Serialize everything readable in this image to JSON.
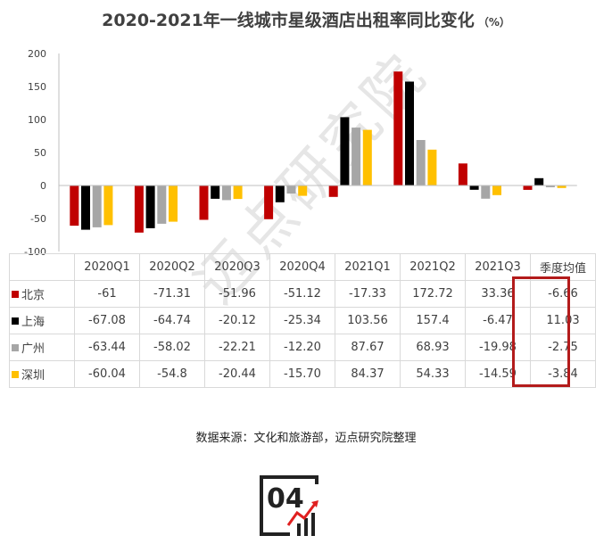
{
  "title": "2020-2021年一线城市星级酒店出租率同比变化",
  "title_unit": "（%）",
  "watermark": "迈点研究院",
  "source": "数据来源：文化和旅游部，迈点研究院整理",
  "logo_text": "04",
  "colors": {
    "北京": "#c00000",
    "上海": "#000000",
    "广州": "#a6a6a6",
    "深圳": "#ffc000",
    "highlight": "#b31b1b",
    "logo_arrow": "#e02020"
  },
  "chart_data": {
    "type": "bar",
    "categories": [
      "2020Q1",
      "2020Q2",
      "2020Q3",
      "2020Q4",
      "2021Q1",
      "2021Q2",
      "2021Q3",
      "季度均值"
    ],
    "series": [
      {
        "name": "北京",
        "values": [
          -61,
          -71.31,
          -51.96,
          -51.12,
          -17.33,
          172.72,
          33.36,
          -6.66
        ],
        "labels": [
          "-61",
          "-71.31",
          "-51.96",
          "-51.12",
          "-17.33",
          "172.72",
          "33.36",
          "-6.66"
        ]
      },
      {
        "name": "上海",
        "values": [
          -67.08,
          -64.74,
          -20.12,
          -25.34,
          103.56,
          157.4,
          -6.47,
          11.03
        ],
        "labels": [
          "-67.08",
          "-64.74",
          "-20.12",
          "-25.34",
          "103.56",
          "157.4",
          "-6.47",
          "11.03"
        ]
      },
      {
        "name": "广州",
        "values": [
          -63.44,
          -58.02,
          -22.21,
          -12.2,
          87.67,
          68.93,
          -19.98,
          -2.75
        ],
        "labels": [
          "-63.44",
          "-58.02",
          "-22.21",
          "-12.20",
          "87.67",
          "68.93",
          "-19.98",
          "-2.75"
        ]
      },
      {
        "name": "深圳",
        "values": [
          -60.04,
          -54.8,
          -20.44,
          -15.7,
          84.37,
          54.33,
          -14.59,
          -3.84
        ],
        "labels": [
          "-60.04",
          "-54.8",
          "-20.44",
          "-15.70",
          "84.37",
          "54.33",
          "-14.59",
          "-3.84"
        ]
      }
    ],
    "ylim": [
      -100,
      200
    ],
    "yticks": [
      "200",
      "150",
      "100",
      "50",
      "0",
      "-50",
      "-100"
    ],
    "ytick_values": [
      200,
      150,
      100,
      50,
      0,
      -50,
      -100
    ],
    "grid": false,
    "legend": "data-table"
  }
}
